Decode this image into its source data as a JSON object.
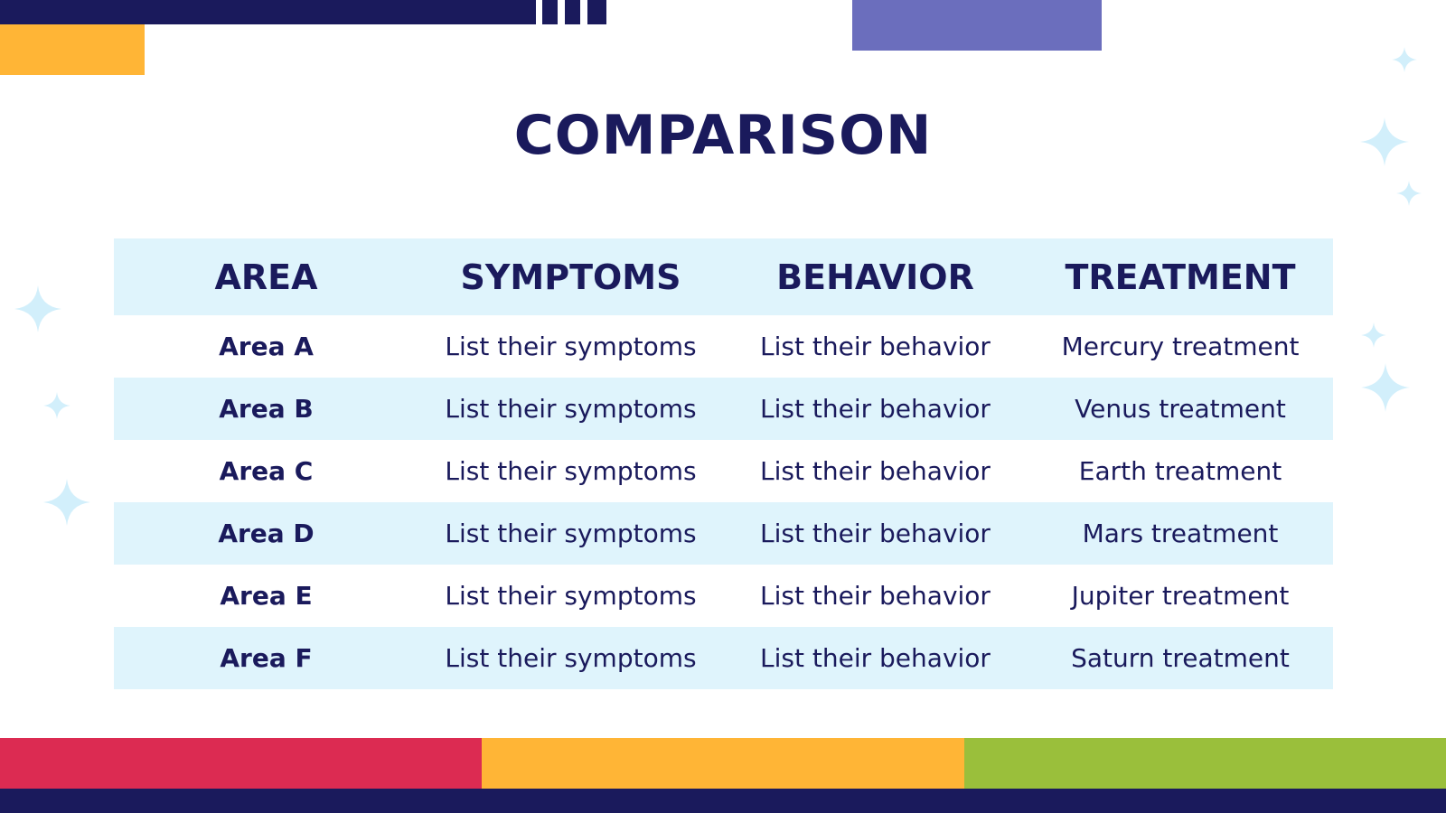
{
  "title": "COMPARISON",
  "table": {
    "headers": [
      "AREA",
      "SYMPTOMS",
      "BEHAVIOR",
      "TREATMENT"
    ],
    "rows": [
      [
        "Area A",
        "List their symptoms",
        "List their behavior",
        "Mercury treatment"
      ],
      [
        "Area B",
        "List their symptoms",
        "List their behavior",
        "Venus treatment"
      ],
      [
        "Area C",
        "List their symptoms",
        "List their behavior",
        "Earth treatment"
      ],
      [
        "Area D",
        "List their symptoms",
        "List their behavior",
        "Mars treatment"
      ],
      [
        "Area E",
        "List their symptoms",
        "List their behavior",
        "Jupiter treatment"
      ],
      [
        "Area F",
        "List their symptoms",
        "List their behavior",
        "Saturn treatment"
      ]
    ]
  },
  "colors": {
    "navy": "#1a1a5c",
    "header_fill": "#dff4fc",
    "row_shade": "#dff4fc",
    "orange": "#ffb536",
    "purple": "#6b6ebd",
    "red": "#dc2b52",
    "green": "#9abf3b",
    "sparkle": "#d2effb"
  },
  "icons": [
    "sparkle-icon"
  ]
}
